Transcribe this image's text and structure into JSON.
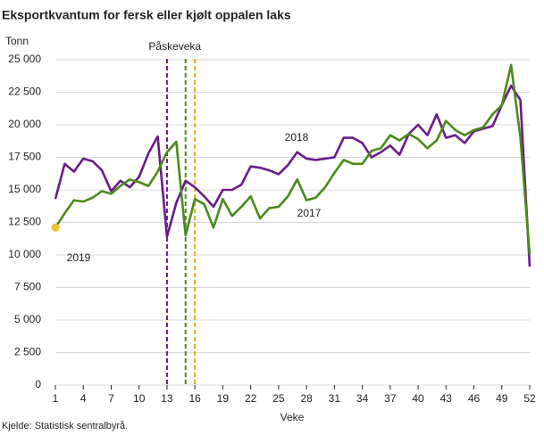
{
  "chart_data": {
    "type": "line",
    "title": "Eksportkvantum for fersk eller kjølt oppalen laks",
    "y_label": "Tonn",
    "x_label": "Veke",
    "source": "Kjelde: Statistisk sentralbyrå.",
    "x": [
      1,
      2,
      3,
      4,
      5,
      6,
      7,
      8,
      9,
      10,
      11,
      12,
      13,
      14,
      15,
      16,
      17,
      18,
      19,
      20,
      21,
      22,
      23,
      24,
      25,
      26,
      27,
      28,
      29,
      30,
      31,
      32,
      33,
      34,
      35,
      36,
      37,
      38,
      39,
      40,
      41,
      42,
      43,
      44,
      45,
      46,
      47,
      48,
      49,
      50,
      51,
      52
    ],
    "series": [
      {
        "name": "2018",
        "color": "#6a1b8a",
        "values": [
          14300,
          17000,
          16400,
          17400,
          17200,
          16500,
          14900,
          15700,
          15200,
          16000,
          17800,
          19100,
          11400,
          14000,
          15700,
          15200,
          14500,
          13700,
          15000,
          15000,
          15400,
          16800,
          16700,
          16500,
          16200,
          16900,
          17900,
          17400,
          17300,
          17400,
          17500,
          19000,
          19000,
          18600,
          17500,
          17900,
          18400,
          17700,
          19300,
          20000,
          19200,
          20800,
          19000,
          19200,
          18600,
          19500,
          19700,
          19900,
          21500,
          23000,
          21900,
          9100
        ]
      },
      {
        "name": "2017",
        "color": "#4a8a1a",
        "values": [
          12100,
          13200,
          14200,
          14100,
          14400,
          14900,
          14700,
          15300,
          15800,
          15600,
          15300,
          16400,
          17900,
          18700,
          11500,
          14300,
          13900,
          12100,
          14300,
          13000,
          13700,
          14500,
          12800,
          13600,
          13700,
          14500,
          15800,
          14200,
          14400,
          15200,
          16300,
          17300,
          17000,
          17000,
          18000,
          18200,
          19200,
          18800,
          19300,
          18900,
          18200,
          18800,
          20300,
          19600,
          19200,
          19600,
          19800,
          20800,
          21500,
          24600,
          19000,
          10000
        ]
      },
      {
        "name": "2019",
        "color": "#f0c030",
        "values": [
          12100,
          null,
          null,
          null,
          null,
          null,
          null,
          null,
          null,
          null,
          null,
          null,
          null,
          null,
          null,
          null,
          null,
          null,
          null,
          null,
          null,
          null,
          null,
          null,
          null,
          null,
          null,
          null,
          null,
          null,
          null,
          null,
          null,
          null,
          null,
          null,
          null,
          null,
          null,
          null,
          null,
          null,
          null,
          null,
          null,
          null,
          null,
          null,
          null,
          null,
          null,
          null
        ]
      }
    ],
    "vlines": [
      {
        "x": 13,
        "color": "#6a1b8a"
      },
      {
        "x": 15,
        "color": "#4a8a1a"
      },
      {
        "x": 16,
        "color": "#e0a820"
      }
    ],
    "vline_label": "Påskeveka",
    "xlim": [
      1,
      52
    ],
    "xticks": [
      1,
      4,
      7,
      10,
      13,
      16,
      19,
      22,
      25,
      28,
      31,
      34,
      37,
      40,
      43,
      46,
      49,
      52
    ],
    "ylim": [
      0,
      25000
    ],
    "yticks": [
      0,
      {
        "value": 2500,
        "label": "2 500"
      },
      {
        "value": 5000,
        "label": "5 000"
      },
      {
        "value": 7500,
        "label": "7 500"
      },
      {
        "value": 10000,
        "label": "10 000"
      },
      {
        "value": 12500,
        "label": "12 500"
      },
      {
        "value": 15000,
        "label": "15 000"
      },
      {
        "value": 17500,
        "label": "17 500"
      },
      {
        "value": 20000,
        "label": "20 000"
      },
      {
        "value": 22500,
        "label": "22 500"
      },
      {
        "value": 25000,
        "label": "25 000"
      }
    ],
    "grid": true
  }
}
